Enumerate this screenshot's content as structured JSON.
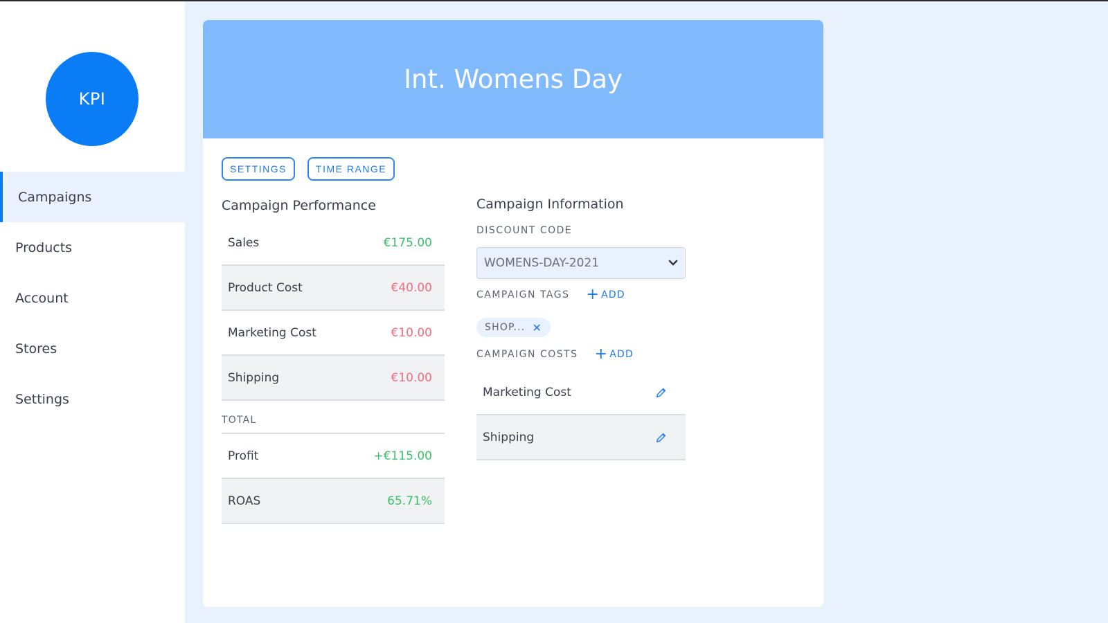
{
  "sidebar": {
    "logo_text": "KPI",
    "items": [
      {
        "label": "Campaigns",
        "active": true
      },
      {
        "label": "Products"
      },
      {
        "label": "Account"
      },
      {
        "label": "Stores"
      },
      {
        "label": "Settings"
      }
    ]
  },
  "campaign": {
    "title": "Int. Womens Day",
    "buttons": {
      "settings": "SETTINGS",
      "time_range": "TIME RANGE"
    }
  },
  "performance": {
    "title": "Campaign Performance",
    "rows": [
      {
        "label": "Sales",
        "value": "€175.00"
      },
      {
        "label": "Product Cost",
        "value": "€40.00"
      },
      {
        "label": "Marketing Cost",
        "value": "€10.00"
      },
      {
        "label": "Shipping",
        "value": "€10.00"
      }
    ],
    "total_label": "TOTAL",
    "totals": [
      {
        "label": "Profit",
        "value": "+€115.00"
      },
      {
        "label": "ROAS",
        "value": "65.71%"
      }
    ]
  },
  "information": {
    "title": "Campaign Information",
    "discount_label": "DISCOUNT CODE",
    "discount_value": "WOMENS-DAY-2021",
    "tags_label": "CAMPAIGN TAGS",
    "add_label": "ADD",
    "tags": [
      "SHOP..."
    ],
    "costs_label": "CAMPAIGN COSTS",
    "costs": [
      {
        "label": "Marketing Cost"
      },
      {
        "label": "Shipping"
      }
    ]
  },
  "colors": {
    "accent": "#0a7cf5",
    "header": "#80bafc",
    "positive": "#3cc16a",
    "negative": "#ef6d7d"
  },
  "icons": {
    "dropdown": "chevron-down-icon",
    "edit": "pencil-icon",
    "remove_tag": "close-icon",
    "add": "plus-icon"
  }
}
